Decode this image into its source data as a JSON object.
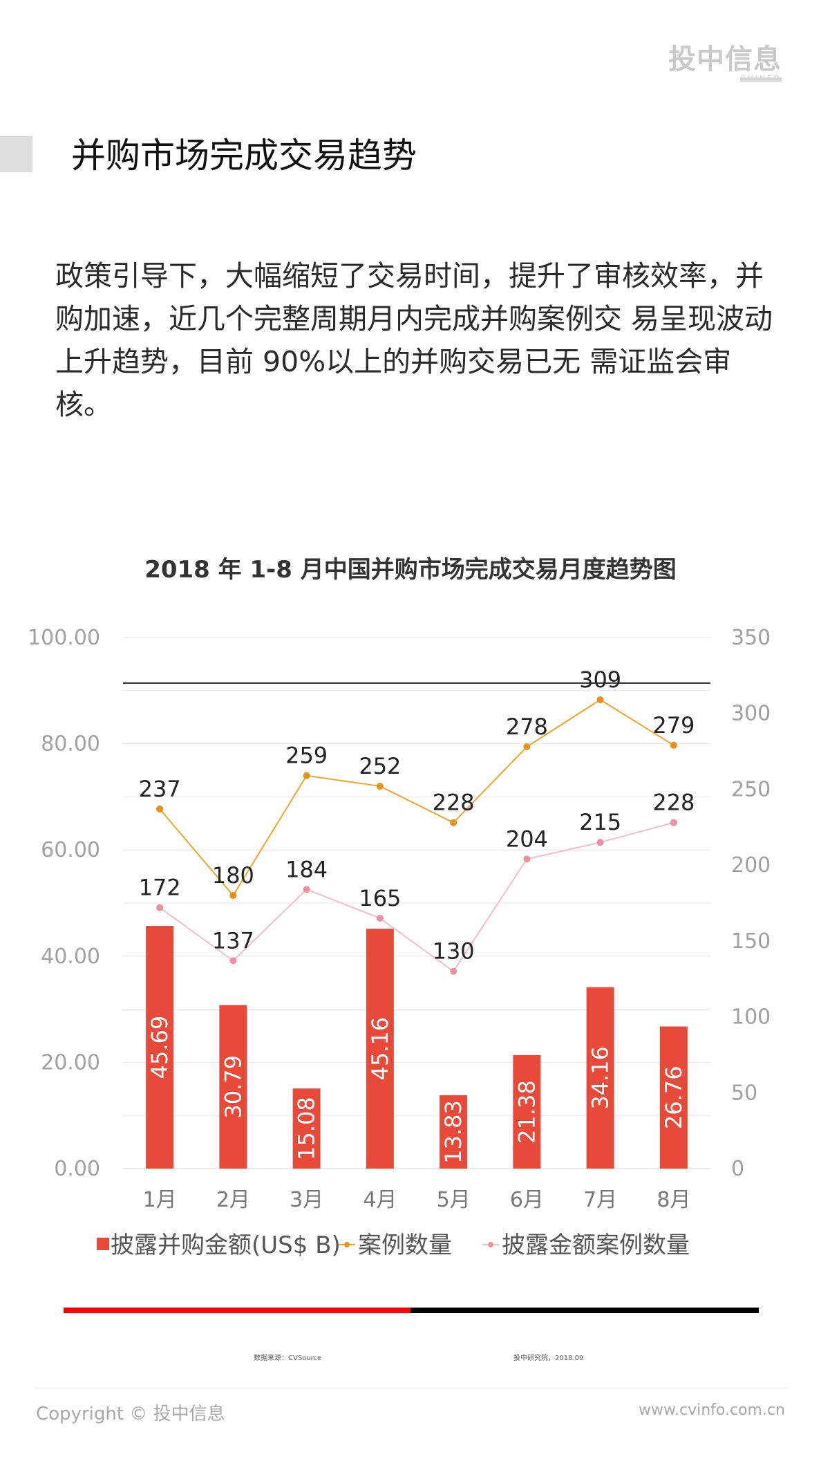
{
  "brand": {
    "logo_text": "投中信息",
    "logo_sub": "CVINFO"
  },
  "page_title": "并购市场完成交易趋势",
  "intro_text": "政策引导下，大幅缩短了交易时间，提升了审核效率，并购加速，近几个完整周期月内完成并购案例交 易呈现波动上升趋势，目前 90%以上的并购交易已无 需证监会审核。",
  "colors": {
    "bar": "#E84A3A",
    "cases_line": "#F4A22A",
    "cases_marker": "#E8901A",
    "disclosed_line": "#F6BCC4",
    "disclosed_marker": "#EE8FA0",
    "gridline": "#e6e6e6",
    "axis_text": "#a0a0a0",
    "footer_red": "#ff0000",
    "footer_black": "#000000"
  },
  "chart_data": {
    "type": "bar",
    "title": "2018 年 1-8 月中国并购市场完成交易月度趋势图",
    "categories": [
      "1月",
      "2月",
      "3月",
      "4月",
      "5月",
      "6月",
      "7月",
      "8月"
    ],
    "y_left": {
      "min": 0,
      "max": 100,
      "ticks": [
        "0.00",
        "20.00",
        "40.00",
        "60.00",
        "80.00",
        "100.00"
      ]
    },
    "y_right": {
      "min": 0,
      "max": 350,
      "ticks": [
        "0",
        "50",
        "100",
        "150",
        "200",
        "250",
        "300",
        "350"
      ]
    },
    "reference_line_right_value": 320,
    "grid": true,
    "legend_position": "bottom",
    "series": [
      {
        "name": "披露并购金额(US$ B)",
        "kind": "bar",
        "axis": "left",
        "values": [
          45.69,
          30.79,
          15.08,
          45.16,
          13.83,
          21.38,
          34.16,
          26.76
        ],
        "labels": [
          "45.69",
          "30.79",
          "15.08",
          "45.16",
          "13.83",
          "21.38",
          "34.16",
          "26.76"
        ]
      },
      {
        "name": "案例数量",
        "kind": "line",
        "axis": "right",
        "values": [
          237,
          180,
          259,
          252,
          228,
          278,
          309,
          279
        ],
        "labels": [
          "237",
          "180",
          "259",
          "252",
          "228",
          "278",
          "309",
          "279"
        ]
      },
      {
        "name": "披露金额案例数量",
        "kind": "line",
        "axis": "right",
        "values": [
          172,
          137,
          184,
          165,
          130,
          204,
          215,
          228
        ],
        "labels": [
          "172",
          "137",
          "184",
          "165",
          "130",
          "204",
          "215",
          "228"
        ]
      }
    ]
  },
  "source_note": "数据来源：CVSource",
  "research_note": "投中研究院，2018.09",
  "footer": {
    "copyright": "Copyright ©  投中信息",
    "website": "www.cvinfo.com.cn"
  }
}
